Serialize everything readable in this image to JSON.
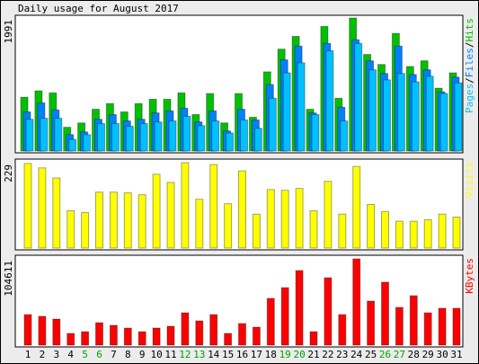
{
  "chart_data": [
    {
      "type": "bar",
      "title": "Daily usage for August 2017",
      "ylim": [
        0,
        1991
      ],
      "yticks": [
        1991
      ],
      "legend_separator": "/",
      "series": [
        {
          "name": "Pages",
          "color": "#00c0ff",
          "values": [
            475,
            490,
            490,
            175,
            245,
            410,
            410,
            370,
            410,
            435,
            450,
            520,
            380,
            450,
            270,
            465,
            340,
            790,
            1170,
            1320,
            545,
            1500,
            450,
            1610,
            1215,
            1065,
            1160,
            1035,
            1120,
            860,
            1020
          ]
        },
        {
          "name": "Files",
          "color": "#0080ff",
          "values": [
            585,
            720,
            615,
            245,
            285,
            475,
            545,
            450,
            475,
            570,
            600,
            640,
            435,
            600,
            300,
            625,
            465,
            995,
            1365,
            1570,
            570,
            1610,
            655,
            1665,
            1350,
            1160,
            1570,
            1145,
            1215,
            885,
            1105
          ]
        },
        {
          "name": "Hits",
          "color": "#00c000",
          "values": [
            805,
            900,
            870,
            355,
            420,
            625,
            710,
            585,
            710,
            775,
            775,
            870,
            545,
            860,
            420,
            860,
            505,
            1185,
            1525,
            1715,
            625,
            1865,
            790,
            1991,
            1445,
            1295,
            1760,
            1265,
            1350,
            940,
            1170
          ]
        }
      ]
    },
    {
      "type": "bar",
      "ylim": [
        0,
        229
      ],
      "yticks": [
        229
      ],
      "series": [
        {
          "name": "Visits",
          "color": "#ffff00",
          "values": [
            227,
            215,
            188,
            100,
            95,
            150,
            150,
            148,
            143,
            198,
            176,
            229,
            131,
            224,
            119,
            207,
            91,
            157,
            155,
            160,
            100,
            179,
            91,
            219,
            117,
            98,
            72,
            72,
            76,
            91,
            83
          ]
        }
      ]
    },
    {
      "type": "bar",
      "ylim": [
        0,
        104611
      ],
      "yticks": [
        104611
      ],
      "categories": [
        "1",
        "2",
        "3",
        "4",
        "5",
        "6",
        "7",
        "8",
        "9",
        "10",
        "11",
        "12",
        "13",
        "14",
        "15",
        "16",
        "17",
        "18",
        "19",
        "20",
        "21",
        "22",
        "23",
        "24",
        "25",
        "26",
        "27",
        "28",
        "29",
        "30",
        "31"
      ],
      "category_colors": [
        "#000000",
        "#000000",
        "#000000",
        "#000000",
        "#00a000",
        "#00a000",
        "#000000",
        "#000000",
        "#000000",
        "#000000",
        "#000000",
        "#00a000",
        "#00a000",
        "#000000",
        "#000000",
        "#000000",
        "#000000",
        "#000000",
        "#00a000",
        "#00a000",
        "#000000",
        "#000000",
        "#000000",
        "#000000",
        "#000000",
        "#00a000",
        "#00a000",
        "#000000",
        "#000000",
        "#000000",
        "#000000"
      ],
      "series": [
        {
          "name": "KBytes",
          "color": "#ff0000",
          "values": [
            37000,
            34900,
            31600,
            14200,
            16300,
            27200,
            24000,
            20700,
            16300,
            20700,
            22900,
            39200,
            29400,
            37000,
            14200,
            26200,
            21800,
            56700,
            69700,
            90400,
            16300,
            81700,
            37000,
            104611,
            53400,
            76300,
            45800,
            59900,
            39200,
            44700,
            44700
          ]
        }
      ]
    }
  ]
}
